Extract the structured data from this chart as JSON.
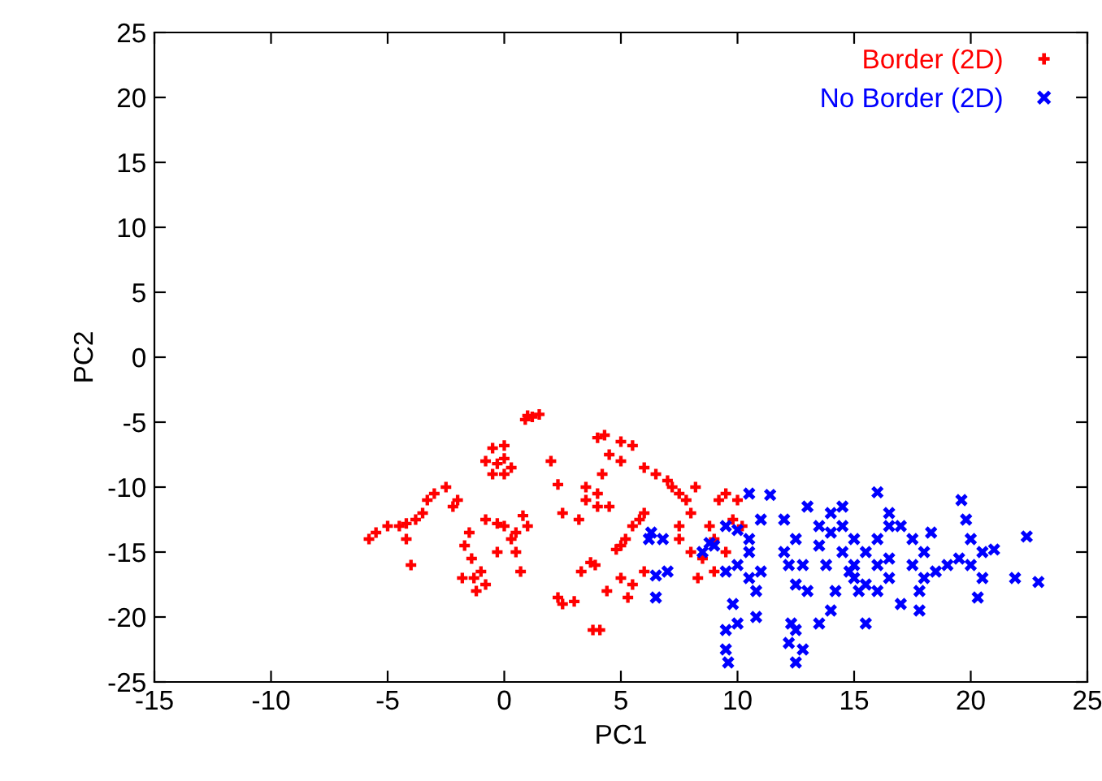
{
  "chart_data": {
    "type": "scatter",
    "xlabel": "PC1",
    "ylabel": "PC2",
    "xlim": [
      -15,
      25
    ],
    "ylim": [
      -25,
      25
    ],
    "xticks": [
      -15,
      -10,
      -5,
      0,
      5,
      10,
      15,
      20,
      25
    ],
    "yticks": [
      -25,
      -20,
      -15,
      -10,
      -5,
      0,
      5,
      10,
      15,
      20,
      25
    ],
    "grid": false,
    "legend": "top right",
    "series": [
      {
        "name": "Border (2D)",
        "color": "#ff0000",
        "marker": "plus",
        "x": [
          -5.8,
          -5.5,
          -5,
          -4.5,
          -4.2,
          -3.8,
          -4.2,
          -4,
          -3.5,
          -3.3,
          -3,
          -2.5,
          -2,
          -2.2,
          -1.5,
          -1.7,
          -1.4,
          -1.3,
          -1.8,
          -1,
          -1.2,
          -0.8,
          -0.8,
          -0.5,
          0,
          -0.5,
          0,
          0.3,
          0,
          -0.3,
          -0.8,
          -0.3,
          0,
          0.5,
          0.3,
          0.8,
          1,
          0.5,
          0.7,
          -0.3,
          2,
          2.3,
          1.5,
          0.9,
          1,
          1.2,
          2.5,
          3.5,
          3.5,
          3.2,
          4,
          4.5,
          4,
          2.3,
          2.5,
          3,
          3.7,
          3.9,
          4.4,
          3.8,
          4.1,
          3.3,
          4,
          4.3,
          5,
          5.5,
          4.5,
          5,
          6,
          4.2,
          6.5,
          7,
          7.5,
          7.8,
          8,
          7.5,
          8.2,
          7.2,
          6,
          5.5,
          5.2,
          5,
          5.8,
          4.8,
          5,
          5.5,
          6,
          5.3,
          7.5,
          8,
          8.5,
          9,
          8.3,
          9.2,
          9.5,
          10,
          9.8,
          10.2,
          9.5,
          9,
          8.8
        ],
        "values": [
          -14,
          -13.5,
          -13,
          -13,
          -12.8,
          -12.5,
          -14,
          -16,
          -12,
          -11,
          -10.5,
          -10,
          -11,
          -11.5,
          -13.5,
          -14.5,
          -15.5,
          -17,
          -17,
          -16.5,
          -18,
          -17.5,
          -8,
          -7,
          -6.8,
          -9,
          -9,
          -8.5,
          -7.8,
          -8.2,
          -12.5,
          -12.8,
          -13,
          -13.5,
          -14,
          -12.2,
          -13,
          -15,
          -16.5,
          -15,
          -8,
          -9.8,
          -4.4,
          -4.8,
          -4.5,
          -4.6,
          -12,
          -11,
          -10,
          -12.5,
          -11.5,
          -11.5,
          -10.5,
          -18.5,
          -19,
          -18.8,
          -15.8,
          -16,
          -18,
          -21,
          -21,
          -16.5,
          -6.2,
          -6,
          -6.5,
          -6.8,
          -7.5,
          -8,
          -8.5,
          -9,
          -9,
          -9.5,
          -10.5,
          -11,
          -12,
          -13,
          -10,
          -10,
          -12,
          -13,
          -14,
          -14.5,
          -12.5,
          -14.8,
          -17,
          -17.5,
          -16.5,
          -18.5,
          -14,
          -15,
          -15.5,
          -16.5,
          -17,
          -11,
          -10.5,
          -11,
          -12.5,
          -13,
          -15,
          -14,
          -13
        ]
      },
      {
        "name": "No Border (2D)",
        "color": "#0000ff",
        "marker": "cross",
        "x": [
          6.2,
          6.3,
          6.8,
          6.5,
          6.5,
          7,
          8.5,
          8.8,
          9,
          9.5,
          10,
          10.5,
          11,
          10.5,
          10,
          9.5,
          10.5,
          11,
          10.8,
          9.8,
          9.5,
          9.5,
          9.6,
          10,
          10.8,
          10.5,
          11.4,
          12,
          12,
          12.5,
          12.2,
          12.5,
          12.8,
          13,
          12.3,
          12.5,
          12.2,
          12.5,
          12.8,
          13.5,
          13,
          13.5,
          13.5,
          14,
          14,
          14.5,
          14.5,
          14.5,
          15,
          15,
          15,
          15.2,
          14.8,
          15.5,
          15.5,
          16,
          16,
          16,
          16.5,
          16.5,
          16.5,
          13.8,
          14.2,
          14,
          15.5,
          16,
          16.5,
          17,
          17.5,
          17.5,
          18,
          18,
          18.3,
          17.8,
          17,
          17.8,
          19,
          19.5,
          18.5,
          20,
          20.5,
          20.5,
          20,
          20.3,
          19.6,
          21.9,
          22.4,
          22.9,
          19.8,
          21
        ],
        "values": [
          -14,
          -13.5,
          -14,
          -16.8,
          -18.5,
          -16.5,
          -15,
          -14.3,
          -14.5,
          -13,
          -13.3,
          -14,
          -12.5,
          -15,
          -16,
          -16.5,
          -17,
          -16.5,
          -18,
          -19,
          -21,
          -22.5,
          -23.5,
          -20.5,
          -20,
          -10.5,
          -10.6,
          -12.5,
          -15,
          -14,
          -16,
          -17.5,
          -16,
          -18,
          -20.5,
          -21,
          -22,
          -23.5,
          -22.5,
          -20.5,
          -11.5,
          -13,
          -14.5,
          -13.5,
          -12,
          -11.5,
          -13,
          -15,
          -14,
          -16,
          -17,
          -18,
          -16.5,
          -15,
          -17.5,
          -14,
          -16,
          -18,
          -13,
          -15.5,
          -17,
          -16,
          -18,
          -19.5,
          -20.5,
          -10.4,
          -12,
          -13,
          -14,
          -16,
          -15,
          -17,
          -13.5,
          -18,
          -19,
          -19.5,
          -16,
          -15.5,
          -16.5,
          -16,
          -15,
          -17,
          -14,
          -18.5,
          -11,
          -17,
          -13.8,
          -17.3,
          -12.5,
          -14.8
        ]
      }
    ]
  }
}
